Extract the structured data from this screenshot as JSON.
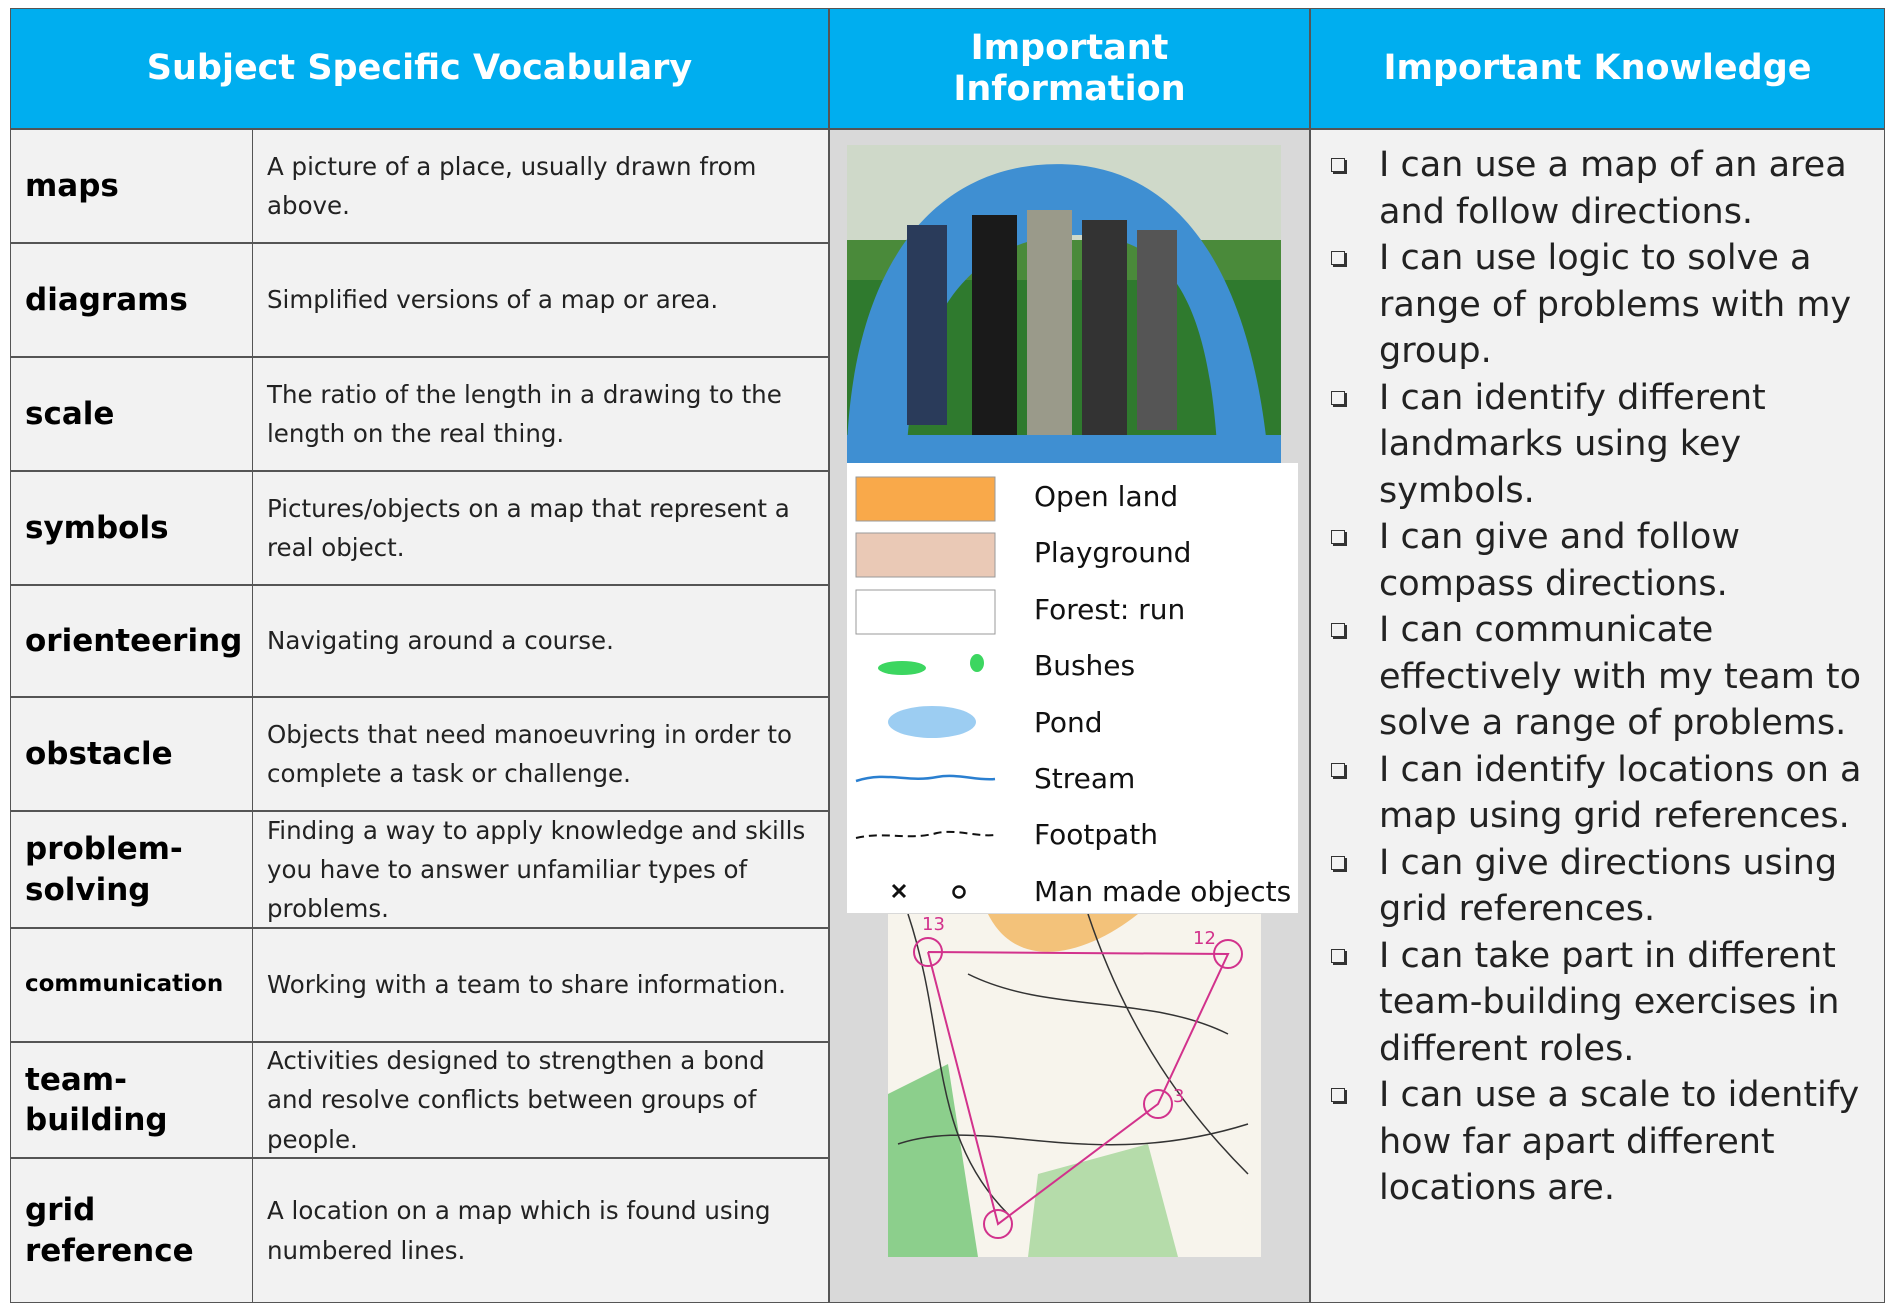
{
  "header": {
    "columns": [
      "Subject Specific Vocabulary",
      "Important Information",
      "Important Knowledge"
    ]
  },
  "vocabulary": [
    {
      "term": "maps",
      "definition": "A picture of a place, usually drawn from above."
    },
    {
      "term": "diagrams",
      "definition": "Simplified versions of a map or area."
    },
    {
      "term": "scale",
      "definition": "The ratio of the length in a drawing to the length on the real thing."
    },
    {
      "term": "symbols",
      "definition": "Pictures/objects on a map that represent a real object."
    },
    {
      "term": "orienteering",
      "definition": "Navigating around a course."
    },
    {
      "term": "obstacle",
      "definition": "Objects that need manoeuvring in order to complete a task or challenge."
    },
    {
      "term": "problem-solving",
      "definition": "Finding a way to apply knowledge and skills you have to answer unfamiliar types of problems."
    },
    {
      "term": "communication",
      "definition": "Working with a team to share information."
    },
    {
      "term": "team-building",
      "definition": "Activities designed to strengthen a bond and resolve conflicts between groups of people."
    },
    {
      "term": "grid reference",
      "definition": "A location on a map which is found using numbered lines."
    }
  ],
  "legend": [
    "Open land",
    "Playground",
    "Forest: run",
    "Bushes",
    "Pond",
    "Stream",
    "Footpath",
    "Man made objects"
  ],
  "map_labels": [
    "13",
    "12",
    "3"
  ],
  "knowledge": [
    "I can use a map of an area and follow directions.",
    "I can use logic to solve a range of problems with my group.",
    "I can identify different landmarks using key symbols.",
    "I can give and follow compass directions.",
    "I can communicate effectively with my team to solve a range of problems.",
    "I can identify locations on a map using grid references.",
    "I can give directions using grid references.",
    "I can take part in different team-building exercises in different roles.",
    "I can use a scale to identify how far apart different locations are."
  ]
}
